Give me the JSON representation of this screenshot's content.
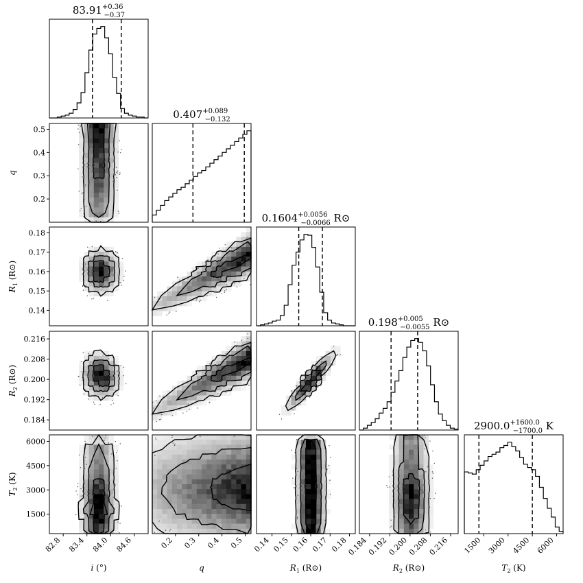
{
  "chart_data": {
    "type": "corner",
    "parameters": [
      {
        "label": "i (°)",
        "sym": "i",
        "unit": "(°)",
        "range": [
          82.45,
          84.95
        ],
        "ticks": [
          "82.8",
          "83.4",
          "84.0",
          "84.6"
        ],
        "tick_values": [
          82.8,
          83.4,
          84.0,
          84.6
        ]
      },
      {
        "label": "q",
        "sym": "q",
        "unit": "",
        "range": [
          0.1,
          0.525
        ],
        "ticks": [
          "0.2",
          "0.3",
          "0.4",
          "0.5"
        ],
        "tick_values": [
          0.2,
          0.3,
          0.4,
          0.5
        ]
      },
      {
        "label": "R1 (R⊙)",
        "sym": "R",
        "sub": "1",
        "unit": "(R⊙)",
        "range": [
          0.132,
          0.183
        ],
        "ticks": [
          "0.14",
          "0.15",
          "0.16",
          "0.17",
          "0.18"
        ],
        "tick_values": [
          0.14,
          0.15,
          0.16,
          0.17,
          0.18
        ]
      },
      {
        "label": "R2 (R⊙)",
        "sym": "R",
        "sub": "2",
        "unit": "(R⊙)",
        "range": [
          0.18,
          0.219
        ],
        "ticks": [
          "0.184",
          "0.192",
          "0.200",
          "0.208",
          "0.216"
        ],
        "tick_values": [
          0.184,
          0.192,
          0.2,
          0.208,
          0.216
        ]
      },
      {
        "label": "T2 (K)",
        "sym": "T",
        "sub": "2",
        "unit": "(K)",
        "range": [
          300,
          6400
        ],
        "ticks": [
          "1500",
          "3000",
          "4500",
          "6000"
        ],
        "tick_values": [
          1500,
          3000,
          4500,
          6000
        ]
      }
    ],
    "titles": [
      {
        "value": "83.91",
        "plus": "+0.36",
        "minus": "−0.37",
        "unit": ""
      },
      {
        "value": "0.407",
        "plus": "+0.089",
        "minus": "−0.132",
        "unit": ""
      },
      {
        "value": "0.1604",
        "plus": "+0.0056",
        "minus": "−0.0066",
        "unit": "R⊙"
      },
      {
        "value": "0.198",
        "plus": "+0.005",
        "minus": "−0.0055",
        "unit": "R⊙"
      },
      {
        "value": "2900.0",
        "plus": "+1600.0",
        "minus": "−1700.0",
        "unit": "K"
      }
    ],
    "quantiles": [
      [
        83.54,
        84.27
      ],
      [
        0.275,
        0.496
      ],
      [
        0.1538,
        0.166
      ],
      [
        0.1925,
        0.203
      ],
      [
        1200,
        4500
      ]
    ],
    "histograms": [
      [
        0,
        0,
        1,
        2,
        3,
        5,
        9,
        16,
        27,
        48,
        72,
        89,
        95,
        97,
        85,
        68,
        43,
        26,
        10,
        5,
        3,
        2,
        1,
        1,
        0
      ],
      [
        6,
        10,
        14,
        18,
        21,
        24,
        27,
        29,
        32,
        35,
        38,
        41,
        43,
        46,
        49,
        52,
        55,
        58,
        61,
        64,
        67,
        70,
        73,
        76
      ],
      [
        0,
        1,
        2,
        3,
        5,
        6,
        11,
        22,
        44,
        65,
        79,
        92,
        98,
        97,
        84,
        63,
        36,
        14,
        6,
        3,
        2,
        1,
        0,
        0,
        0
      ],
      [
        0,
        2,
        5,
        8,
        12,
        18,
        23,
        30,
        40,
        52,
        63,
        77,
        88,
        95,
        97,
        93,
        84,
        68,
        48,
        30,
        17,
        10,
        5,
        2,
        1
      ],
      [
        56,
        55,
        54,
        58,
        62,
        66,
        70,
        72,
        74,
        78,
        80,
        83,
        79,
        75,
        69,
        63,
        60,
        58,
        52,
        42,
        32,
        23,
        15,
        6,
        2
      ]
    ],
    "axis_labels_bottom": [
      "i (°)",
      "q",
      "R1 (R⊙)",
      "R2 (R⊙)",
      "T2 (K)"
    ],
    "axis_labels_left": [
      "q",
      "R1 (R⊙)",
      "R2 (R⊙)",
      "T2 (K)"
    ],
    "contour_levels": 3,
    "colors": {
      "density": "#000000",
      "background": "#ffffff",
      "lines": "#000000"
    }
  }
}
